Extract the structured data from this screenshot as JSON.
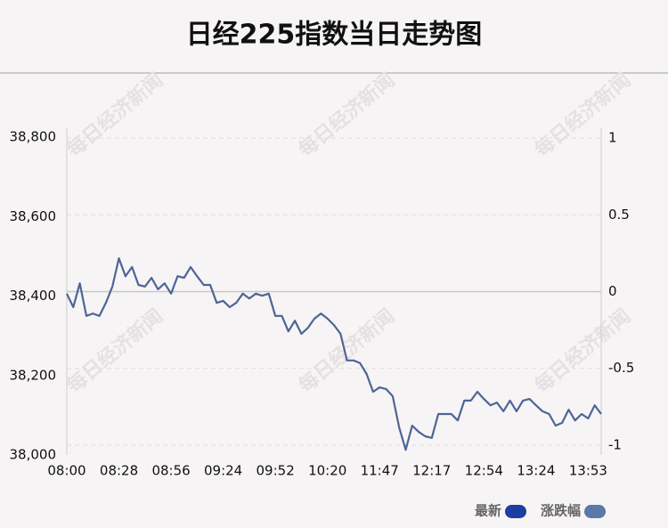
{
  "chart_data": {
    "type": "line",
    "title": "日经225指数当日走势图",
    "watermark": "每日经济新闻",
    "categories": [
      "08:00",
      null,
      null,
      null,
      null,
      null,
      null,
      null,
      "08:28",
      null,
      null,
      null,
      null,
      null,
      null,
      null,
      "08:56",
      null,
      null,
      null,
      null,
      null,
      null,
      null,
      "09:24",
      null,
      null,
      null,
      null,
      null,
      null,
      null,
      "09:52",
      null,
      null,
      null,
      null,
      null,
      null,
      null,
      "10:20",
      null,
      null,
      null,
      null,
      null,
      null,
      null,
      "11:47",
      null,
      null,
      null,
      null,
      null,
      null,
      null,
      "12:17",
      null,
      null,
      null,
      null,
      null,
      null,
      null,
      "12:54",
      null,
      null,
      null,
      null,
      null,
      null,
      null,
      "13:24",
      null,
      null,
      null,
      null,
      null,
      null,
      null,
      "13:53",
      null,
      null
    ],
    "series": [
      {
        "name": "最新",
        "color": "#1a3fa0",
        "line_color": "#4d6596",
        "values": [
          38406,
          38372,
          38432,
          38350,
          38356,
          38350,
          38383,
          38424,
          38495,
          38450,
          38473,
          38428,
          38424,
          38446,
          38417,
          38432,
          38406,
          38450,
          38446,
          38473,
          38450,
          38428,
          38428,
          38383,
          38388,
          38372,
          38383,
          38406,
          38394,
          38406,
          38401,
          38406,
          38350,
          38350,
          38311,
          38338,
          38305,
          38320,
          38343,
          38356,
          38343,
          38327,
          38305,
          38238,
          38238,
          38231,
          38204,
          38159,
          38170,
          38166,
          38148,
          38069,
          38013,
          38074,
          38058,
          38047,
          38043,
          38103,
          38103,
          38103,
          38087,
          38137,
          38137,
          38159,
          38141,
          38125,
          38132,
          38110,
          38137,
          38110,
          38137,
          38141,
          38125,
          38110,
          38103,
          38074,
          38081,
          38114,
          38087,
          38103,
          38092,
          38125,
          38103
        ]
      }
    ],
    "legend": [
      {
        "name": "最新",
        "color": "#1a3fa0"
      },
      {
        "name": "涨跌幅",
        "color": "#5a78a8"
      }
    ],
    "ylim": [
      38000,
      38800
    ],
    "yticks": [
      {
        "value": 38000,
        "label": "38,000"
      },
      {
        "value": 38200,
        "label": "38,200"
      },
      {
        "value": 38400,
        "label": "38,400"
      },
      {
        "value": 38600,
        "label": "38,600"
      },
      {
        "value": 38800,
        "label": "38,800"
      }
    ],
    "y2lim": [
      -1.064,
      1.006
    ],
    "y2ticks": [
      -1,
      -0.5,
      0,
      0.5,
      1
    ],
    "grid": true
  }
}
